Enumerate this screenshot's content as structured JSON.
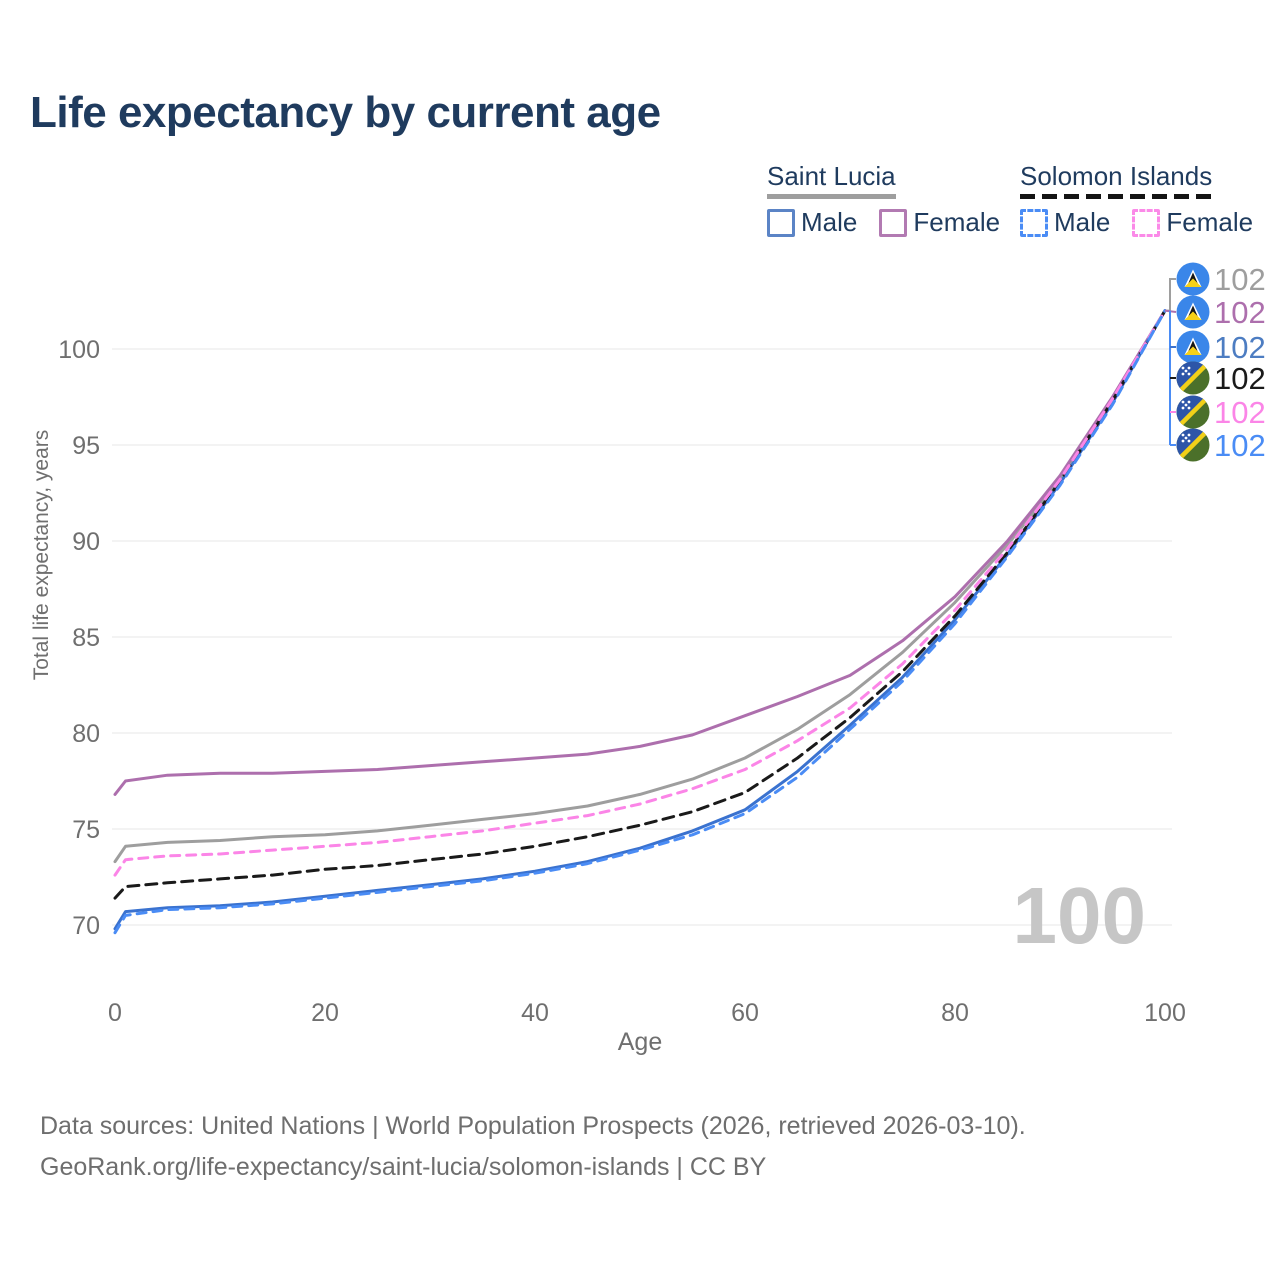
{
  "title": "Life expectancy by current age",
  "legend": {
    "groups": [
      {
        "country": "Saint Lucia",
        "line_style": "solid",
        "line_color": "#9e9e9e",
        "items": [
          {
            "label": "Male",
            "color": "#5b84c6",
            "box_style": "solid"
          },
          {
            "label": "Female",
            "color": "#b27ab2",
            "box_style": "solid"
          }
        ]
      },
      {
        "country": "Solomon Islands",
        "line_style": "dashed",
        "line_color": "#141414",
        "items": [
          {
            "label": "Male",
            "color": "#4a8cf5",
            "box_style": "dashed"
          },
          {
            "label": "Female",
            "color": "#fb8ae8",
            "box_style": "dashed"
          }
        ]
      }
    ]
  },
  "chart_data": {
    "type": "line",
    "title": "Life expectancy by current age",
    "xlabel": "Age",
    "ylabel": "Total life expectancy, years",
    "xlim": [
      0,
      100
    ],
    "ylim": [
      68.5,
      103
    ],
    "x_ticks": [
      0,
      20,
      40,
      60,
      80,
      100
    ],
    "y_ticks": [
      70,
      75,
      80,
      85,
      90,
      95,
      100
    ],
    "grid": "horizontal-only",
    "watermark": "100",
    "x": [
      0,
      1,
      5,
      10,
      15,
      20,
      25,
      30,
      35,
      40,
      45,
      50,
      55,
      60,
      65,
      70,
      75,
      80,
      85,
      90,
      95,
      100
    ],
    "series": [
      {
        "id": "saint-lucia-all",
        "country": "Saint Lucia",
        "sex": "All",
        "color": "#9e9e9e",
        "line_dash": "solid",
        "flag": "saint-lucia-flag-icon",
        "end_label": "102",
        "label_color": "#9e9e9e",
        "values": [
          73.3,
          74.1,
          74.3,
          74.4,
          74.6,
          74.7,
          74.9,
          75.2,
          75.5,
          75.8,
          76.2,
          76.8,
          77.6,
          78.7,
          80.2,
          82.0,
          84.2,
          86.8,
          89.8,
          93.2,
          97.4,
          102
        ]
      },
      {
        "id": "saint-lucia-female",
        "country": "Saint Lucia",
        "sex": "Female",
        "color": "#ad6fad",
        "line_dash": "solid",
        "flag": "saint-lucia-flag-icon",
        "end_label": "102",
        "label_color": "#ad6fad",
        "values": [
          76.8,
          77.5,
          77.8,
          77.9,
          77.9,
          78.0,
          78.1,
          78.3,
          78.5,
          78.7,
          78.9,
          79.3,
          79.9,
          80.9,
          81.9,
          83.0,
          84.8,
          87.1,
          90.0,
          93.4,
          97.5,
          102
        ]
      },
      {
        "id": "saint-lucia-male",
        "country": "Saint Lucia",
        "sex": "Male",
        "color": "#3a72cf",
        "line_dash": "solid",
        "flag": "saint-lucia-flag-icon",
        "end_label": "102",
        "label_color": "#4d7dc2",
        "values": [
          69.8,
          70.7,
          70.9,
          71.0,
          71.2,
          71.5,
          71.8,
          72.1,
          72.4,
          72.8,
          73.3,
          74.0,
          74.9,
          76.0,
          78.0,
          80.4,
          82.9,
          85.9,
          89.3,
          93.0,
          97.2,
          102
        ]
      },
      {
        "id": "solomon-islands-all",
        "country": "Solomon Islands",
        "sex": "All",
        "color": "#1a1a1a",
        "line_dash": "dashed",
        "flag": "solomon-islands-flag-icon",
        "end_label": "102",
        "label_color": "#1a1a1a",
        "values": [
          71.4,
          72.0,
          72.2,
          72.4,
          72.6,
          72.9,
          73.1,
          73.4,
          73.7,
          74.1,
          74.6,
          75.2,
          75.9,
          76.9,
          78.7,
          80.8,
          83.2,
          86.1,
          89.4,
          93.1,
          97.3,
          102
        ]
      },
      {
        "id": "solomon-islands-female",
        "country": "Solomon Islands",
        "sex": "Female",
        "color": "#fb85e7",
        "line_dash": "dashed",
        "flag": "solomon-islands-flag-icon",
        "end_label": "102",
        "label_color": "#fb85e7",
        "values": [
          72.6,
          73.4,
          73.6,
          73.7,
          73.9,
          74.1,
          74.3,
          74.6,
          74.9,
          75.3,
          75.7,
          76.3,
          77.1,
          78.1,
          79.6,
          81.3,
          83.6,
          86.4,
          89.6,
          93.2,
          97.4,
          102
        ]
      },
      {
        "id": "solomon-islands-male",
        "country": "Solomon Islands",
        "sex": "Male",
        "color": "#4a8cf5",
        "line_dash": "dashed",
        "flag": "solomon-islands-flag-icon",
        "end_label": "102",
        "label_color": "#4a8cf5",
        "values": [
          69.6,
          70.5,
          70.8,
          70.9,
          71.1,
          71.4,
          71.7,
          72.0,
          72.3,
          72.7,
          73.2,
          73.9,
          74.7,
          75.8,
          77.7,
          80.2,
          82.7,
          85.7,
          89.2,
          92.9,
          97.1,
          102
        ]
      }
    ]
  },
  "footer": {
    "line1": "Data sources: United Nations | World Population Prospects (2026, retrieved 2026-03-10).",
    "line2": "GeoRank.org/life-expectancy/saint-lucia/solomon-islands | CC BY"
  }
}
